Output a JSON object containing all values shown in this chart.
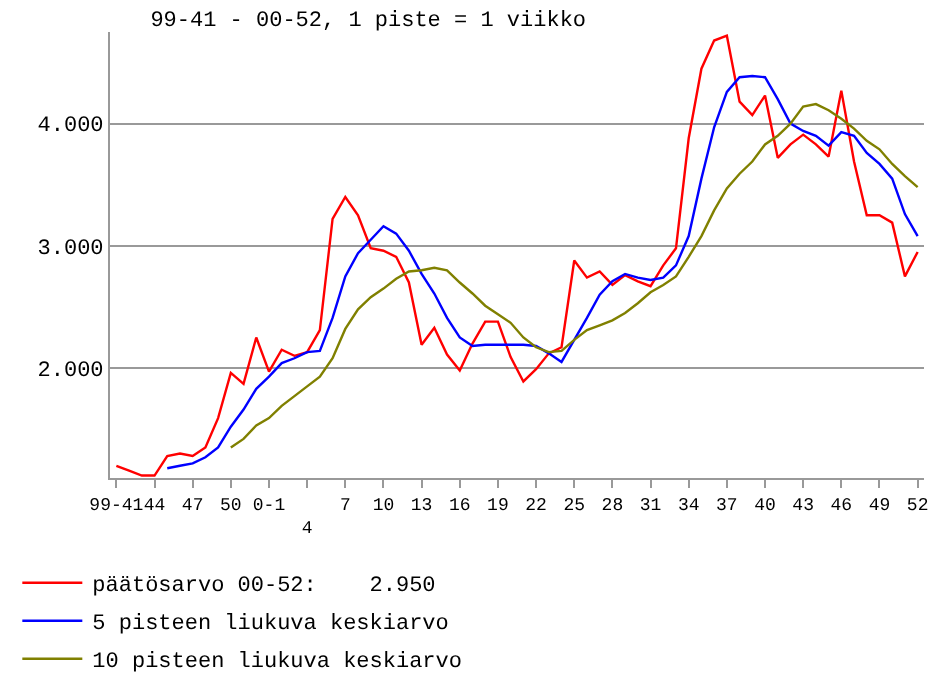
{
  "chart_data": {
    "type": "line",
    "title": "99-41 - 00-52, 1 piste = 1 viikko",
    "categories": [
      "99-41",
      null,
      null,
      "44",
      null,
      null,
      "47",
      null,
      null,
      "50",
      null,
      null,
      "0-1",
      null,
      null,
      "4",
      null,
      null,
      "7",
      null,
      null,
      "10",
      null,
      null,
      "13",
      null,
      null,
      "16",
      null,
      null,
      "19",
      null,
      null,
      "22",
      null,
      null,
      "25",
      null,
      null,
      "28",
      null,
      null,
      "31",
      null,
      null,
      "34",
      null,
      null,
      "37",
      null,
      null,
      "40",
      null,
      null,
      "43",
      null,
      null,
      "46",
      null,
      null,
      "49",
      null,
      null,
      "52"
    ],
    "series": [
      {
        "name": "päätösarvo 00-52:    2.950",
        "color": "#ff0000",
        "values": [
          1.2,
          1.16,
          1.12,
          1.12,
          1.28,
          1.3,
          1.28,
          1.35,
          1.59,
          1.96,
          1.87,
          2.25,
          1.97,
          2.15,
          2.1,
          2.13,
          2.31,
          3.22,
          3.4,
          3.25,
          2.98,
          2.96,
          2.91,
          2.7,
          2.19,
          2.33,
          2.11,
          1.98,
          2.2,
          2.38,
          2.38,
          2.09,
          1.89,
          1.99,
          2.12,
          2.17,
          2.88,
          2.74,
          2.79,
          2.68,
          2.76,
          2.71,
          2.67,
          2.84,
          2.98,
          3.88,
          4.45,
          4.68,
          4.72,
          4.18,
          4.07,
          4.23,
          3.72,
          3.83,
          3.91,
          3.83,
          3.73,
          4.27,
          3.69,
          3.25,
          3.25,
          3.19,
          2.75,
          2.95
        ]
      },
      {
        "name": "5 pisteen liukuva keskiarvo",
        "color": "#0000ff",
        "values": [
          null,
          null,
          null,
          null,
          1.18,
          1.2,
          1.22,
          1.27,
          1.35,
          1.52,
          1.66,
          1.83,
          1.93,
          2.04,
          2.08,
          2.13,
          2.14,
          2.41,
          2.75,
          2.94,
          3.05,
          3.16,
          3.1,
          2.96,
          2.77,
          2.61,
          2.41,
          2.25,
          2.18,
          2.19,
          2.19,
          2.19,
          2.19,
          2.18,
          2.12,
          2.05,
          2.23,
          2.41,
          2.6,
          2.71,
          2.77,
          2.74,
          2.72,
          2.74,
          2.84,
          3.08,
          3.55,
          3.97,
          4.26,
          4.38,
          4.39,
          4.38,
          4.2,
          4.0,
          3.94,
          3.9,
          3.82,
          3.93,
          3.9,
          3.76,
          3.67,
          3.55,
          3.26,
          3.08
        ]
      },
      {
        "name": "10 pisteen liukuva keskiarvo",
        "color": "#808000",
        "values": [
          null,
          null,
          null,
          null,
          null,
          null,
          null,
          null,
          null,
          1.35,
          1.42,
          1.53,
          1.59,
          1.69,
          1.77,
          1.85,
          1.93,
          2.08,
          2.32,
          2.48,
          2.58,
          2.65,
          2.73,
          2.79,
          2.8,
          2.82,
          2.8,
          2.7,
          2.61,
          2.51,
          2.44,
          2.37,
          2.25,
          2.17,
          2.13,
          2.14,
          2.23,
          2.31,
          2.35,
          2.39,
          2.45,
          2.53,
          2.62,
          2.68,
          2.75,
          2.91,
          3.08,
          3.29,
          3.47,
          3.59,
          3.69,
          3.83,
          3.9,
          4.0,
          4.14,
          4.16,
          4.11,
          4.04,
          3.96,
          3.86,
          3.79,
          3.67,
          3.57,
          3.48
        ]
      }
    ],
    "ylim": [
      1.1,
      4.75
    ],
    "yticks": [
      {
        "value": 2,
        "label": "2.000"
      },
      {
        "value": 3,
        "label": "3.000"
      },
      {
        "value": 4,
        "label": "4.000"
      }
    ],
    "grid": "y",
    "legend": "bottom left",
    "marker": "none",
    "line_style": "solid"
  }
}
